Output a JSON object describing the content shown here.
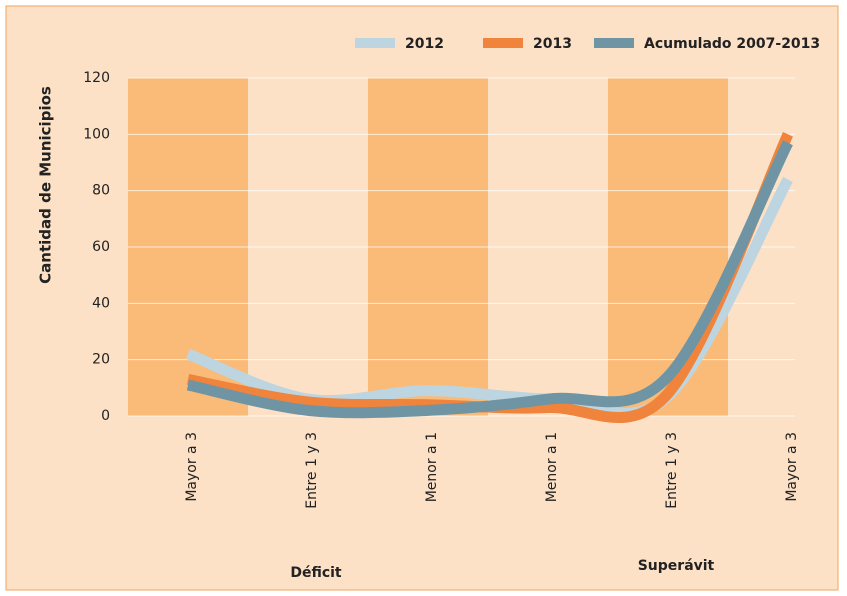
{
  "chart_data": {
    "type": "line",
    "ylabel": "Cantidad de Municipios",
    "categories": [
      "Mayor a 3",
      "Entre  1 y 3",
      "Menor a 1",
      "Menor a 1",
      "Entre  1 y 3",
      "Mayor a 3"
    ],
    "groups": [
      "Déficit",
      "Superávit"
    ],
    "series": [
      {
        "name": "2012",
        "color": "#bdd5e1",
        "values": [
          22,
          6,
          9,
          6,
          7,
          84
        ]
      },
      {
        "name": "2013",
        "color": "#f0843c",
        "values": [
          13,
          5,
          4,
          3,
          8,
          100
        ]
      },
      {
        "name": "Acumulado 2007-2013",
        "color": "#6f95a5",
        "values": [
          11,
          2,
          2,
          6,
          14,
          97
        ]
      }
    ],
    "ylim": [
      0,
      120
    ],
    "yticks": [
      0,
      20,
      40,
      60,
      80,
      100,
      120
    ],
    "grid": true,
    "legend": "top"
  }
}
